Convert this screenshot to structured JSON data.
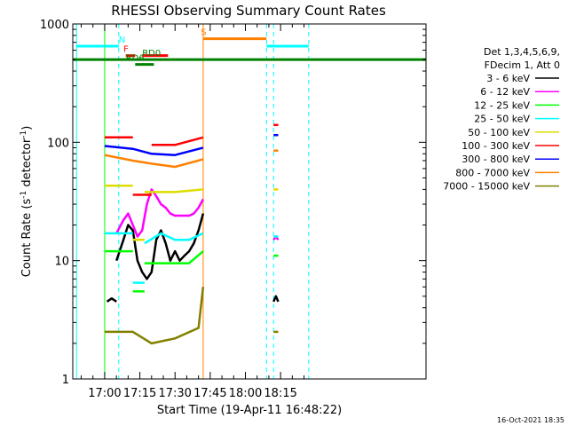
{
  "chart_data": {
    "type": "line",
    "title": "RHESSI Observing Summary Count Rates",
    "xlabel": "Start Time (19-Apr-11 16:48:22)",
    "ylabel_main": "Count Rate (s",
    "ylabel_sup1": "-1",
    "ylabel_mid": " detector",
    "ylabel_sup2": "-1",
    "ylabel_end": ")",
    "ylog": true,
    "ylim": [
      1,
      1000
    ],
    "xlim_min": [
      -13.6,
      137
    ],
    "yticks": [
      {
        "v": 1,
        "label": "1"
      },
      {
        "v": 10,
        "label": "10"
      },
      {
        "v": 100,
        "label": "100"
      },
      {
        "v": 1000,
        "label": "1000"
      }
    ],
    "xticks": [
      {
        "v": 0,
        "label": "17:00"
      },
      {
        "v": 15,
        "label": "17:15"
      },
      {
        "v": 30,
        "label": "17:30"
      },
      {
        "v": 45,
        "label": "17:45"
      },
      {
        "v": 60,
        "label": "18:00"
      },
      {
        "v": 75,
        "label": "18:15"
      }
    ],
    "legend_header": [
      "Det 1,3,4,5,6,9,",
      "FDecim 1, Att 0"
    ],
    "series": [
      {
        "name": "3 - 6 keV",
        "color": "#000000",
        "segments": [
          {
            "x": [
              1,
              3,
              5
            ],
            "y": [
              4.5,
              4.8,
              4.5
            ]
          },
          {
            "x": [
              5,
              8,
              10,
              12,
              14,
              16,
              18,
              20,
              22,
              24,
              26,
              28,
              30,
              32,
              34,
              36,
              38,
              40,
              42
            ],
            "y": [
              10,
              15,
              20,
              18,
              10,
              8,
              7,
              8,
              15,
              18,
              14,
              10,
              12,
              10,
              11,
              12,
              14,
              18,
              25
            ]
          },
          {
            "x": [
              72,
              73,
              74
            ],
            "y": [
              4.5,
              5,
              4.5
            ]
          }
        ]
      },
      {
        "name": "6 - 12 keV",
        "color": "#ff00ff",
        "segments": [
          {
            "x": [
              5,
              8,
              10,
              12,
              14,
              16,
              18,
              20,
              22,
              24,
              26,
              28,
              30,
              32,
              34,
              36,
              38,
              40,
              42
            ],
            "y": [
              17,
              22,
              25,
              20,
              16,
              18,
              30,
              40,
              35,
              30,
              28,
              25,
              24,
              24,
              24,
              24,
              25,
              28,
              33
            ]
          },
          {
            "x": [
              72,
              73,
              74
            ],
            "y": [
              15,
              16,
              15
            ]
          }
        ]
      },
      {
        "name": "12 - 25 keV",
        "color": "#00ff00",
        "segments": [
          {
            "x": [
              0,
              5
            ],
            "y": [
              12,
              12
            ]
          },
          {
            "x": [
              5,
              12
            ],
            "y": [
              12,
              12
            ]
          },
          {
            "x": [
              12,
              17
            ],
            "y": [
              5.5,
              5.5
            ]
          },
          {
            "x": [
              17,
              24,
              30,
              36,
              42
            ],
            "y": [
              9.5,
              9.5,
              9.5,
              9.5,
              12
            ]
          },
          {
            "x": [
              72,
              74
            ],
            "y": [
              11,
              11
            ]
          }
        ]
      },
      {
        "name": "25 - 50 keV",
        "color": "#00ffff",
        "segments": [
          {
            "x": [
              0,
              5,
              12
            ],
            "y": [
              17,
              17,
              17
            ]
          },
          {
            "x": [
              12,
              17
            ],
            "y": [
              6.5,
              6.5
            ]
          },
          {
            "x": [
              17,
              24,
              30,
              36,
              42
            ],
            "y": [
              14,
              17,
              15,
              15,
              17
            ]
          },
          {
            "x": [
              72,
              74
            ],
            "y": [
              16,
              16
            ]
          }
        ]
      },
      {
        "name": "50 - 100 keV",
        "color": "#dddd00",
        "segments": [
          {
            "x": [
              0,
              12
            ],
            "y": [
              43,
              43
            ]
          },
          {
            "x": [
              12,
              17
            ],
            "y": [
              15,
              15
            ]
          },
          {
            "x": [
              17,
              30,
              42
            ],
            "y": [
              38,
              38,
              40
            ]
          },
          {
            "x": [
              72,
              74
            ],
            "y": [
              40,
              40
            ]
          }
        ]
      },
      {
        "name": "100 - 300 keV",
        "color": "#ff0000",
        "segments": [
          {
            "x": [
              0,
              12
            ],
            "y": [
              110,
              110
            ]
          },
          {
            "x": [
              12,
              20
            ],
            "y": [
              36,
              36
            ]
          },
          {
            "x": [
              20,
              30,
              42
            ],
            "y": [
              95,
              95,
              110
            ]
          },
          {
            "x": [
              72,
              74
            ],
            "y": [
              140,
              140
            ]
          }
        ]
      },
      {
        "name": "300 - 800 keV",
        "color": "#0000ff",
        "segments": [
          {
            "x": [
              0,
              12,
              20,
              30,
              42
            ],
            "y": [
              93,
              88,
              80,
              78,
              90
            ]
          },
          {
            "x": [
              72,
              74
            ],
            "y": [
              115,
              115
            ]
          }
        ]
      },
      {
        "name": "800 - 7000 keV",
        "color": "#ff8000",
        "segments": [
          {
            "x": [
              0,
              12,
              20,
              30,
              42
            ],
            "y": [
              78,
              70,
              66,
              62,
              72
            ]
          },
          {
            "x": [
              72,
              74
            ],
            "y": [
              85,
              85
            ]
          }
        ]
      },
      {
        "name": "7000 - 15000 keV",
        "color": "#808000",
        "segments": [
          {
            "x": [
              0,
              12,
              20,
              30,
              40,
              42
            ],
            "y": [
              2.5,
              2.5,
              2.0,
              2.2,
              2.7,
              6
            ]
          },
          {
            "x": [
              72,
              74
            ],
            "y": [
              2.5,
              2.5
            ]
          }
        ]
      }
    ],
    "flags": [
      {
        "label": "N",
        "color": "#00ffff",
        "x_from": -12,
        "x_to": 6,
        "label_x": 6,
        "y": 650
      },
      {
        "label": "N",
        "color": "#00ffff",
        "x_from": 69,
        "x_to": 87,
        "label_x": null,
        "y": 650
      },
      {
        "label": "S",
        "color": "#ff8000",
        "x_from": 42,
        "x_to": 69,
        "label_x": 41,
        "y": 750
      },
      {
        "label": "F",
        "color": "#ff0000",
        "x_from": 9,
        "x_to": 13,
        "label_x": 8,
        "y": 540
      },
      {
        "label": "",
        "color": "#ff0000",
        "x_from": 16,
        "x_to": 27,
        "label_x": null,
        "y": 540
      },
      {
        "label": "RD0",
        "color": "#008000",
        "x_from": -13.6,
        "x_to": 137,
        "label_x": 16,
        "y": 500
      },
      {
        "label": "RD6",
        "color": "#008000",
        "x_from": 13,
        "x_to": 21,
        "label_x": 9,
        "y": 455
      }
    ],
    "vlines": [
      {
        "x": -12,
        "color": "#00ffff",
        "dashed": false
      },
      {
        "x": 6,
        "color": "#00ffff",
        "dashed": true
      },
      {
        "x": 0,
        "color": "#00ff00",
        "dashed": false
      },
      {
        "x": 42,
        "color": "#ff8000",
        "dashed": false
      },
      {
        "x": 69,
        "color": "#00ffff",
        "dashed": true
      },
      {
        "x": 72,
        "color": "#00ffff",
        "dashed": true
      },
      {
        "x": 87,
        "color": "#00ffff",
        "dashed": true
      }
    ],
    "timestamp": "16-Oct-2021 18:35"
  }
}
